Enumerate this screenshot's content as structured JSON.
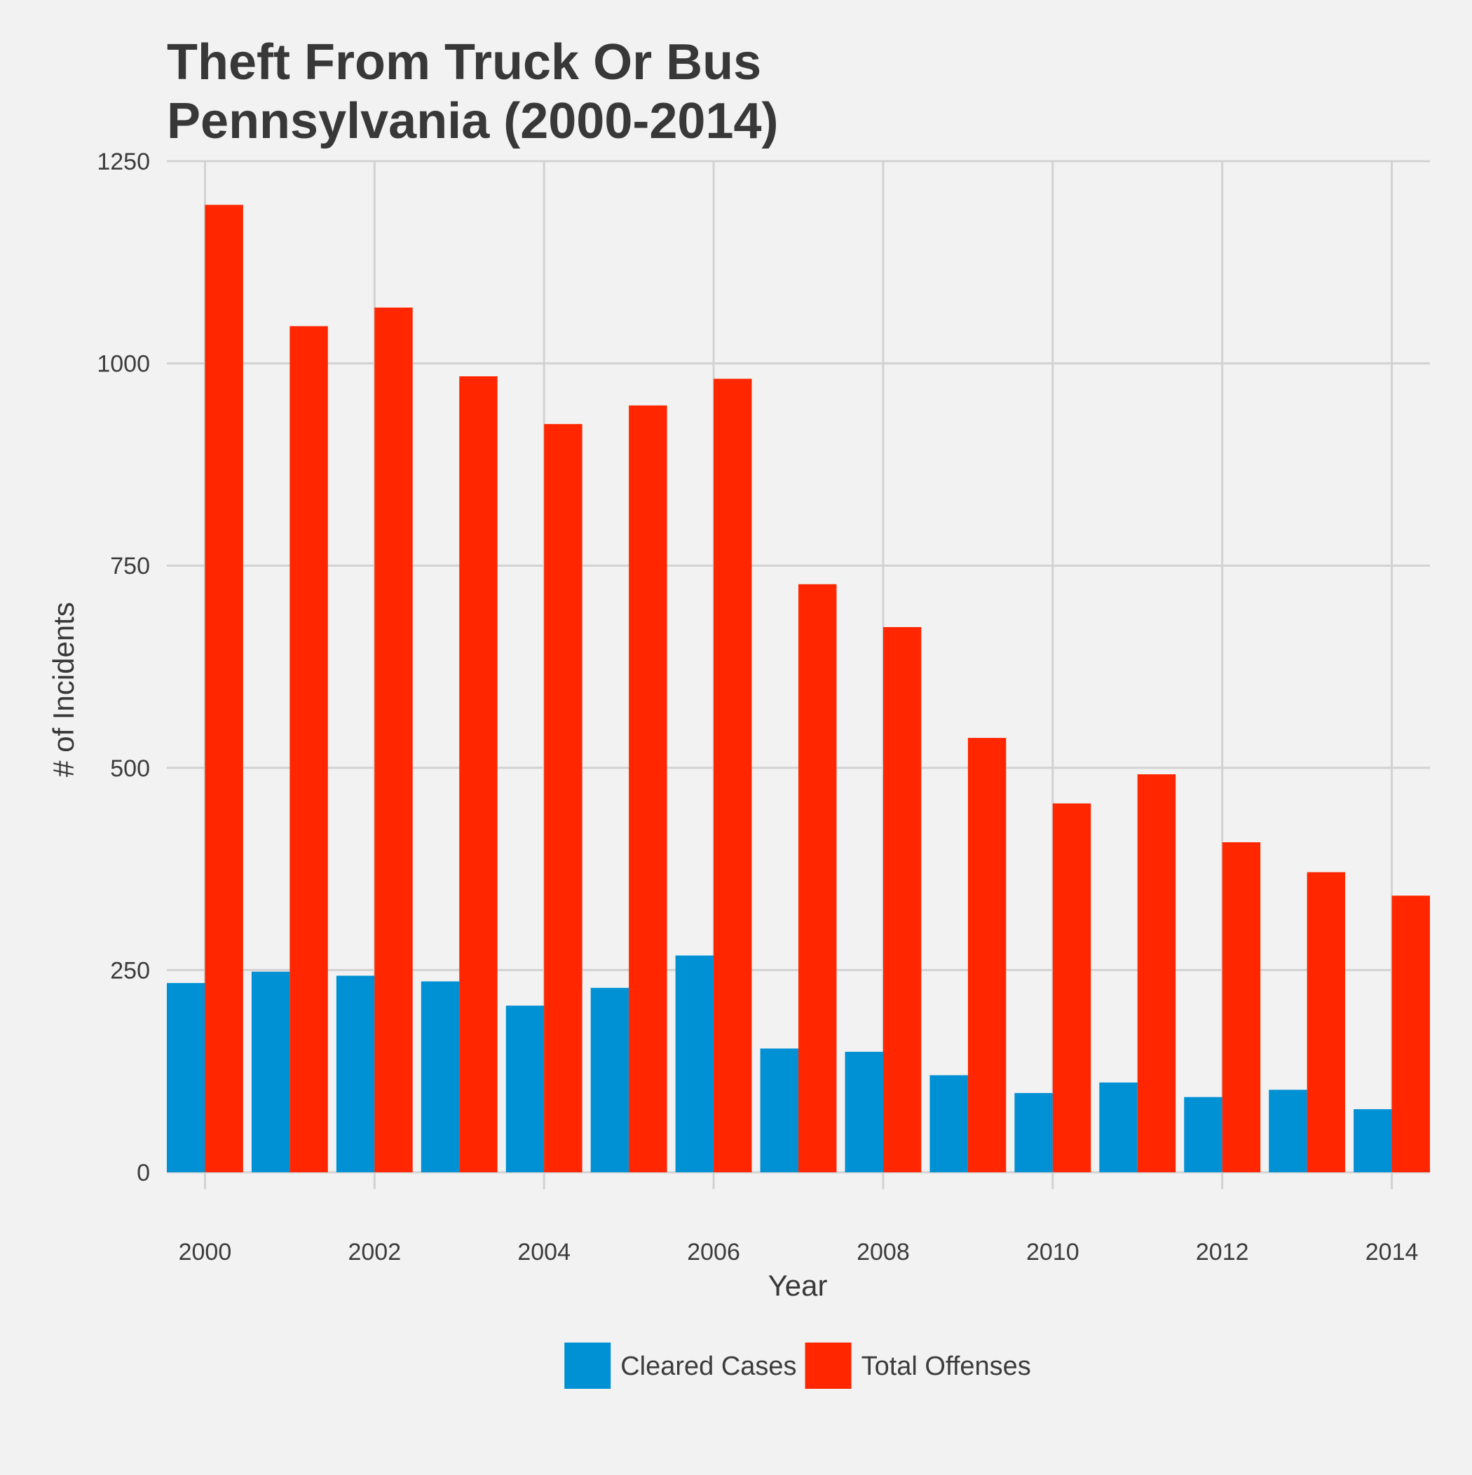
{
  "chart_data": {
    "type": "bar",
    "title": "Theft From Truck Or Bus",
    "subtitle": "Pennsylvania (2000-2014)",
    "xlabel": "Year",
    "ylabel": "# of Incidents",
    "x": [
      2000,
      2001,
      2002,
      2003,
      2004,
      2005,
      2006,
      2007,
      2008,
      2009,
      2010,
      2011,
      2012,
      2013,
      2014
    ],
    "x_ticks": [
      "2000",
      "2002",
      "2004",
      "2006",
      "2008",
      "2010",
      "2012",
      "2014"
    ],
    "y_ticks": [
      "0",
      "250",
      "500",
      "750",
      "1000",
      "1250"
    ],
    "ylim": [
      0,
      1250
    ],
    "xlim": [
      1999.55,
      2014.45
    ],
    "grid": true,
    "legend_position": "bottom",
    "series": [
      {
        "name": "Cleared Cases",
        "color": "#0090d4",
        "values": [
          234,
          248,
          243,
          236,
          206,
          228,
          268,
          153,
          149,
          120,
          98,
          111,
          93,
          102,
          78
        ]
      },
      {
        "name": "Total Offenses",
        "color": "#ff2600",
        "values": [
          1196,
          1046,
          1069,
          984,
          925,
          948,
          981,
          727,
          674,
          537,
          456,
          492,
          408,
          371,
          342
        ]
      }
    ]
  }
}
